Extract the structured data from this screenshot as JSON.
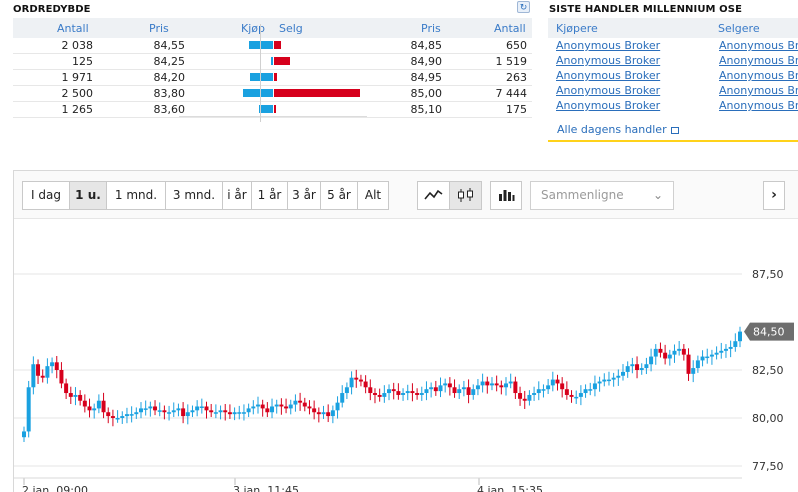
{
  "orderbook": {
    "title": "ORDREDYBDE",
    "headers": {
      "antall_buy": "Antall",
      "pris_buy": "Pris",
      "kjop": "Kjøp",
      "selg": "Selg",
      "pris_sell": "Pris",
      "antall_sell": "Antall"
    },
    "rows": [
      {
        "antall_buy": "2 038",
        "pris_buy": "84,55",
        "buy_frac": 0.3,
        "sell_frac": 0.08,
        "pris_sell": "84,85",
        "antall_sell": "650"
      },
      {
        "antall_buy": "125",
        "pris_buy": "84,25",
        "buy_frac": 0.02,
        "sell_frac": 0.19,
        "pris_sell": "84,90",
        "antall_sell": "1 519"
      },
      {
        "antall_buy": "1 971",
        "pris_buy": "84,20",
        "buy_frac": 0.29,
        "sell_frac": 0.04,
        "pris_sell": "84,95",
        "antall_sell": "263"
      },
      {
        "antall_buy": "2 500",
        "pris_buy": "83,80",
        "buy_frac": 0.37,
        "sell_frac": 1.0,
        "pris_sell": "85,00",
        "antall_sell": "7 444"
      },
      {
        "antall_buy": "1 265",
        "pris_buy": "83,60",
        "buy_frac": 0.18,
        "sell_frac": 0.02,
        "pris_sell": "85,10",
        "antall_sell": "175"
      }
    ]
  },
  "trades": {
    "title": "SISTE HANDLER MILLENNIUM OSE",
    "headers": {
      "buyers": "Kjøpere",
      "sellers": "Selgere"
    },
    "rows": [
      {
        "buyer": "Anonymous Broker",
        "seller": "Anonymous Br"
      },
      {
        "buyer": "Anonymous Broker",
        "seller": "Anonymous Br"
      },
      {
        "buyer": "Anonymous Broker",
        "seller": "Anonymous Br"
      },
      {
        "buyer": "Anonymous Broker",
        "seller": "Anonymous Br"
      },
      {
        "buyer": "Anonymous Broker",
        "seller": "Anonymous Br"
      }
    ],
    "all_link": "Alle dagens handler"
  },
  "toolbar": {
    "ranges": [
      "I dag",
      "1 u.",
      "1 mnd.",
      "3 mnd.",
      "i år",
      "1 år",
      "3 år",
      "5 år",
      "Alt"
    ],
    "active_range": "1 u.",
    "compare_placeholder": "Sammenligne",
    "line_icon": "line-chart-icon",
    "candle_icon": "candlestick-icon",
    "volume_icon": "bar-chart-icon",
    "next_icon": "chevron-right-icon",
    "chevron": "⌄",
    "next_glyph": "›"
  },
  "chart_data": {
    "type": "candlestick",
    "yticks": [
      "87,50",
      "82,50",
      "80,00",
      "77,50"
    ],
    "last_price": "84,50",
    "xticks": [
      "2 jan. 09:00",
      "3 jan. 11:45",
      "4 jan. 15:35"
    ],
    "ylim": [
      77.5,
      88.0
    ],
    "colors": {
      "up": "#1aa1e0",
      "down": "#d6001c"
    },
    "close_path": [
      79.3,
      81.6,
      82.8,
      82.2,
      82.1,
      82.7,
      82.9,
      82.5,
      81.8,
      81.3,
      81.1,
      81.2,
      80.9,
      80.6,
      80.4,
      80.5,
      80.9,
      80.3,
      80.1,
      80.0,
      80.0,
      80.1,
      80.2,
      80.2,
      80.3,
      80.5,
      80.5,
      80.6,
      80.4,
      80.4,
      80.3,
      80.3,
      80.4,
      80.5,
      80.1,
      80.3,
      80.4,
      80.6,
      80.6,
      80.4,
      80.3,
      80.3,
      80.4,
      80.3,
      80.2,
      80.3,
      80.3,
      80.3,
      80.5,
      80.6,
      80.7,
      80.5,
      80.3,
      80.6,
      80.7,
      80.6,
      80.5,
      80.7,
      80.9,
      80.8,
      80.6,
      80.5,
      80.3,
      80.2,
      80.3,
      80.1,
      80.4,
      80.8,
      81.3,
      81.6,
      82.1,
      82.0,
      81.9,
      81.6,
      81.3,
      81.2,
      81.1,
      81.3,
      81.5,
      81.4,
      81.2,
      81.3,
      81.4,
      81.3,
      81.2,
      81.3,
      81.5,
      81.6,
      81.4,
      81.7,
      81.8,
      81.6,
      81.3,
      81.5,
      81.6,
      81.2,
      81.5,
      81.7,
      81.9,
      81.7,
      81.8,
      81.7,
      81.6,
      81.8,
      81.9,
      81.3,
      81.0,
      80.9,
      81.2,
      81.3,
      81.5,
      81.5,
      81.7,
      82.0,
      81.8,
      81.5,
      81.2,
      81.1,
      81.1,
      81.3,
      81.5,
      81.5,
      81.8,
      81.9,
      82.0,
      82.0,
      82.1,
      82.2,
      82.4,
      82.7,
      82.8,
      82.5,
      82.6,
      82.8,
      83.2,
      83.6,
      83.4,
      83.1,
      83.3,
      83.5,
      83.6,
      83.3,
      82.3,
      82.6,
      83.0,
      83.2,
      83.2,
      83.3,
      83.4,
      83.5,
      83.6,
      83.7,
      84.0,
      84.5
    ]
  }
}
